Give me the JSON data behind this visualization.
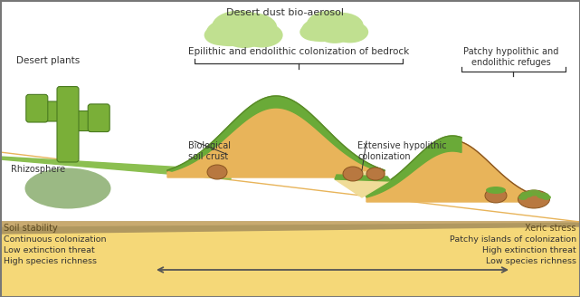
{
  "sand_color": "#E8B45A",
  "sand_light": "#F0CA80",
  "green_ground": "#8BBF50",
  "green_dark_outline": "#5A8A28",
  "green_bio": "#7DB845",
  "green_crust": "#6AAA38",
  "green_dark_rhizo": "#3A7020",
  "rock_color": "#B87840",
  "rock_outline": "#8A5520",
  "sky_color": "#FFFFFF",
  "cloud_color": "#C0E090",
  "cloud_outline": "#A8CC78",
  "soil_bar_top": "#B09860",
  "soil_bar_bottom": "#C8AA70",
  "bg_bottom": "#F5D878",
  "arrow_color": "#555555",
  "text_color": "#333333",
  "border_color": "#888888",
  "rhizo_color": "#4A8020",
  "cactus_main": "#7AAF38",
  "cactus_dark": "#4A7A20",
  "hypo_light": "#F0DC98",
  "title_desert_plants": "Desert plants",
  "title_dust": "Desert dust bio-aerosol",
  "title_epilithic": "Epilithic and endolithic colonization of bedrock",
  "title_patchy": "Patchy hypolithic and\nendolithic refuges",
  "title_rhizosphere": "Rhizosphere",
  "title_bio_crust": "Biological\nsoil crust",
  "title_extensive": "Extensive hypolithic\ncolonization",
  "title_soil_stability": "Soil stability",
  "title_xeric": "Xeric stress",
  "left_text": "Continuous colonization\nLow extinction threat\nHigh species richness",
  "right_text": "Patchy islands of colonization\nHigh extinction threat\nLow species richness"
}
